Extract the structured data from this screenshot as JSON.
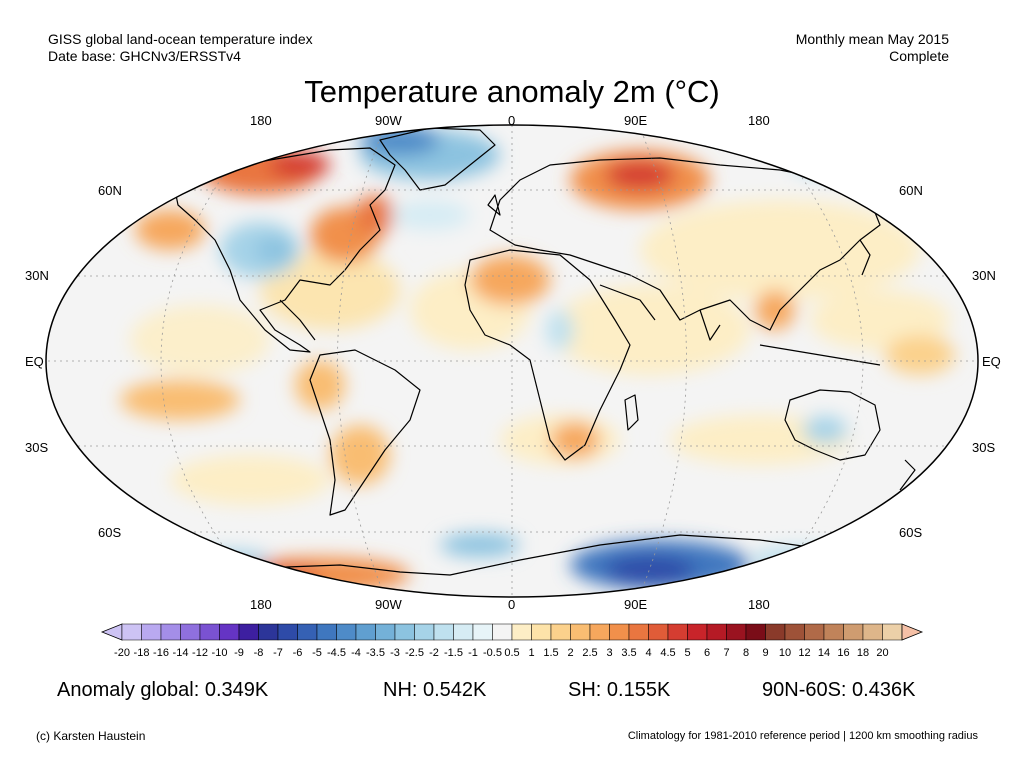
{
  "header": {
    "left_line1": "GISS global land-ocean temperature index",
    "left_line2": "Date base: GHCNv3/ERSSTv4",
    "right_line1": "Monthly mean May 2015",
    "right_line2": "Complete"
  },
  "title": "Temperature anomaly 2m (°C)",
  "map": {
    "projection": "Robinson",
    "lon_labels_top": [
      "180",
      "90W",
      "0",
      "90E",
      "180"
    ],
    "lon_labels_bottom": [
      "180",
      "90W",
      "0",
      "90E",
      "180"
    ],
    "lat_labels_left": [
      "60N",
      "30N",
      "EQ",
      "30S",
      "60S"
    ],
    "lat_labels_right": [
      "60N",
      "30N",
      "EQ",
      "30S",
      "60S"
    ],
    "ocean_color": "#f2f2f2",
    "border_color": "#000000",
    "grid": true
  },
  "colorbar": {
    "labels": [
      "-20",
      "-18",
      "-16",
      "-14",
      "-12",
      "-10",
      "-9",
      "-8",
      "-7",
      "-6",
      "-5",
      "-4.5",
      "-4",
      "-3.5",
      "-3",
      "-2.5",
      "-2",
      "-1.5",
      "-1",
      "-0.5",
      "0.5",
      "1",
      "1.5",
      "2",
      "2.5",
      "3",
      "3.5",
      "4",
      "4.5",
      "5",
      "6",
      "7",
      "8",
      "9",
      "10",
      "12",
      "14",
      "16",
      "18",
      "20"
    ],
    "colors": [
      "#cdc3f4",
      "#b9a9f0",
      "#a48ee8",
      "#8f70de",
      "#7a52d2",
      "#6534c4",
      "#3d1fa0",
      "#2c3599",
      "#2e4ba8",
      "#3561b4",
      "#3f77bf",
      "#4e8bc8",
      "#609fd0",
      "#74b1d8",
      "#8cc3e0",
      "#a6d3e8",
      "#bfe1ef",
      "#d6ecf4",
      "#e7f4f8",
      "#f4f4f4",
      "#fdeec6",
      "#fde3a9",
      "#fbd18c",
      "#f9bd72",
      "#f6a75d",
      "#f1904b",
      "#e97640",
      "#e05c38",
      "#d53d31",
      "#c8242a",
      "#b51a25",
      "#9a1320",
      "#7a0d18",
      "#8a3a2a",
      "#9e5238",
      "#b06a48",
      "#c0835a",
      "#cf9c70",
      "#deb68a",
      "#ecd0a8"
    ],
    "min_color": "#cdc3f4",
    "max_color": "#f5c0a6"
  },
  "stats": {
    "global": "Anomaly global: 0.349K",
    "nh": "NH: 0.542K",
    "sh": "SH: 0.155K",
    "arctic": "90N-60S: 0.436K"
  },
  "footer": {
    "left": "(c) Karsten Haustein",
    "right": "Climatology for 1981-2010 reference period | 1200 km smoothing radius"
  }
}
